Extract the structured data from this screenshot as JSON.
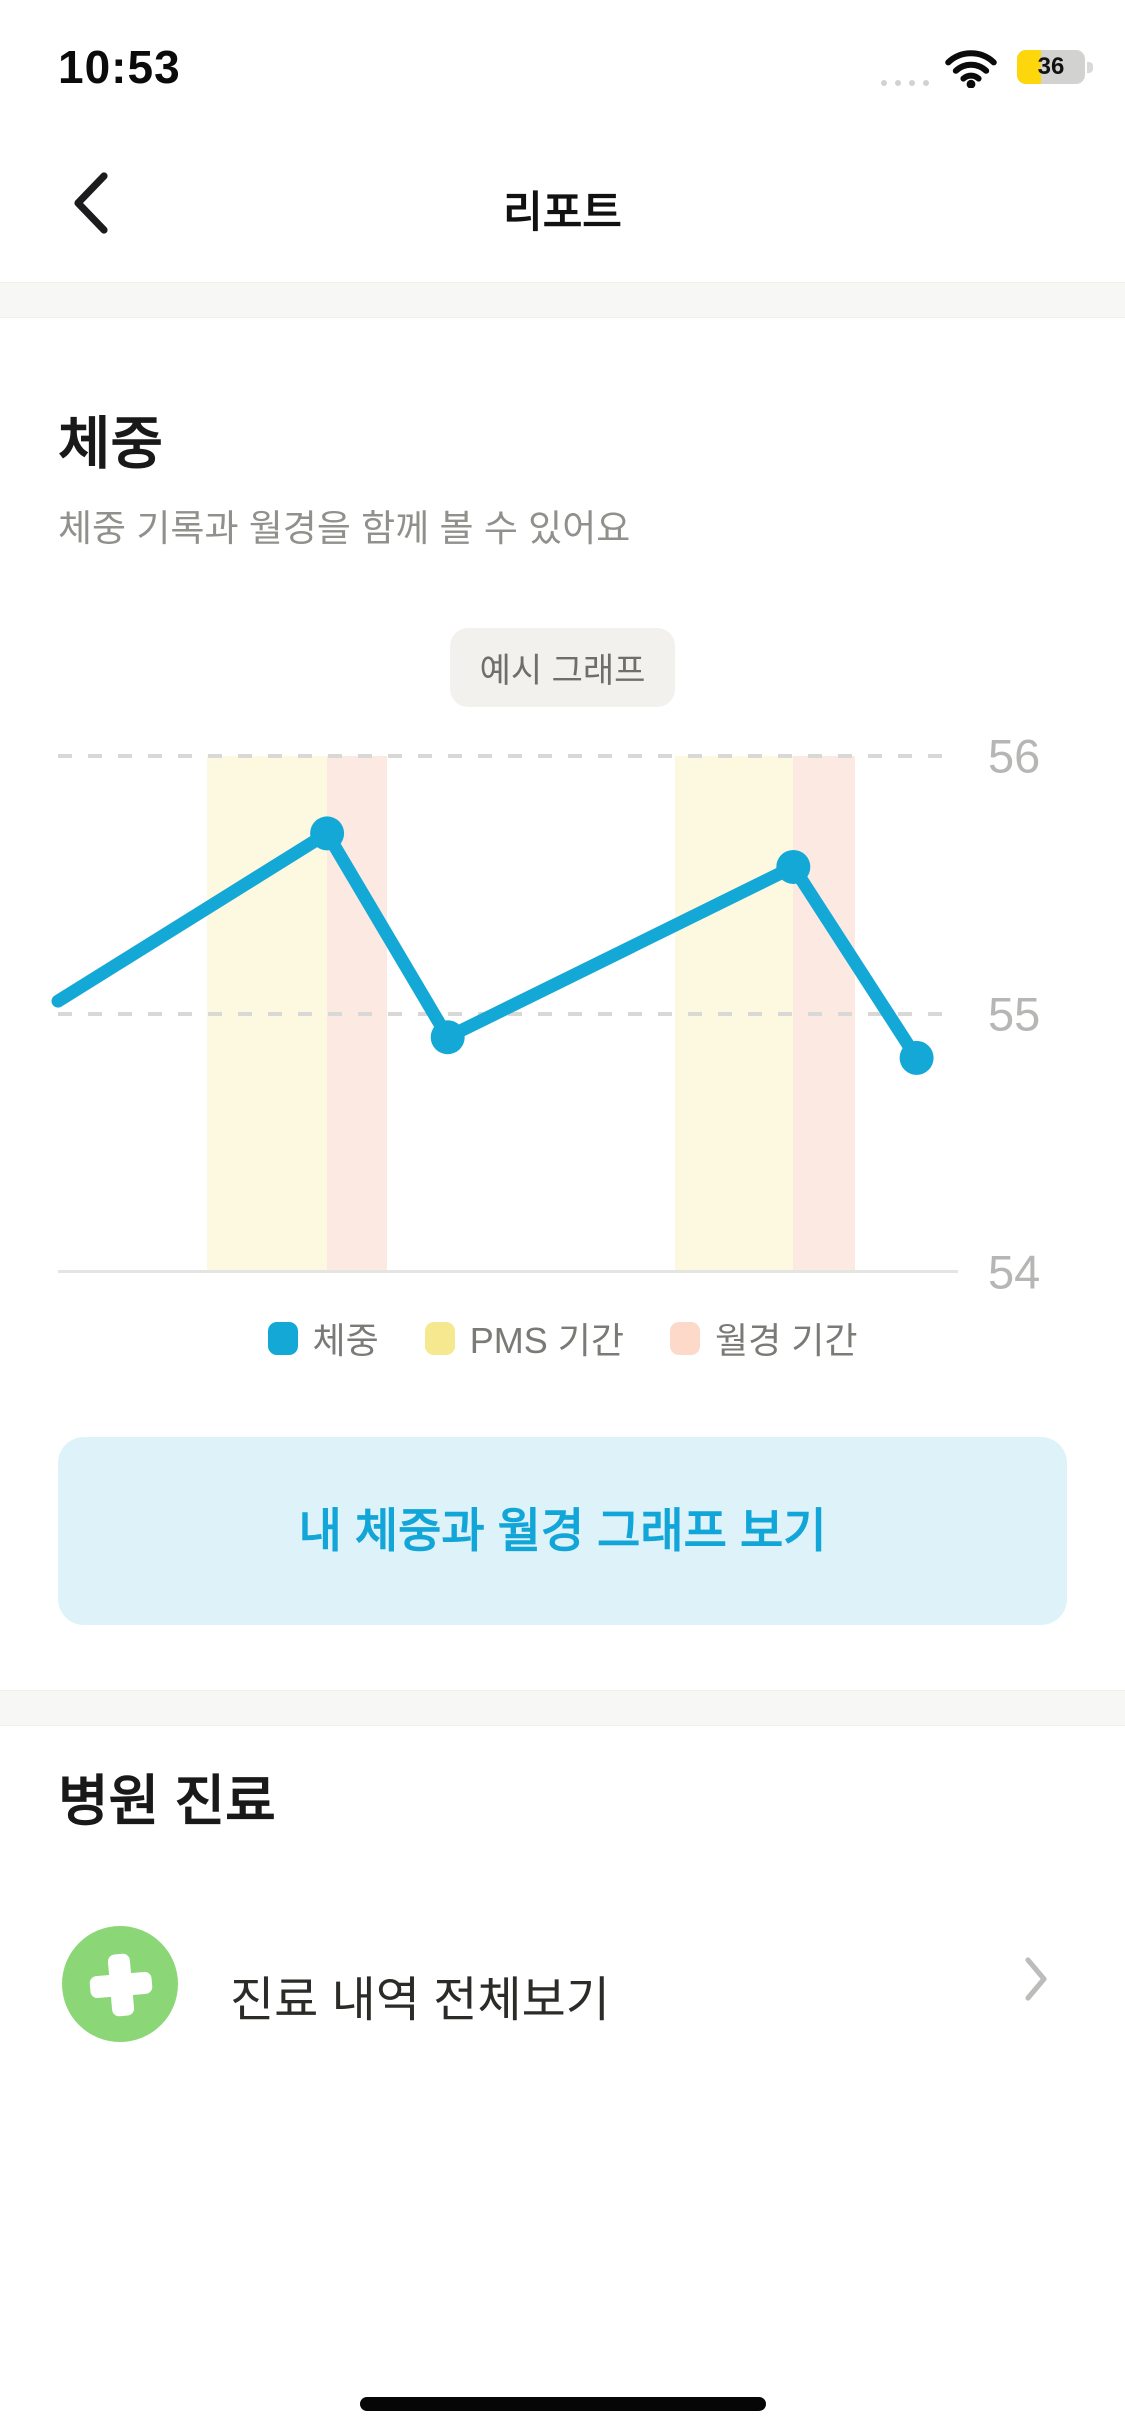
{
  "status_bar": {
    "time": "10:53",
    "battery_percent": "36"
  },
  "header": {
    "title": "리포트"
  },
  "weight_section": {
    "title": "체중",
    "subtitle": "체중 기록과 월경을 함께 볼 수 있어요",
    "badge": "예시 그래프",
    "button_label": "내 체중과 월경 그래프 보기"
  },
  "chart_data": {
    "type": "line",
    "title": "예시 그래프",
    "ylim": [
      54,
      56
    ],
    "yticks": [
      {
        "value": 56,
        "style": "dashed"
      },
      {
        "value": 55,
        "style": "dashed"
      },
      {
        "value": 54,
        "style": "solid"
      }
    ],
    "grid": "horizontal-dashed",
    "legend_position": "bottom",
    "series": [
      {
        "name": "체중",
        "color": "#14a8d6",
        "points": [
          {
            "x": 0.0,
            "y": 55.05,
            "dot": false
          },
          {
            "x": 0.299,
            "y": 55.7
          },
          {
            "x": 0.433,
            "y": 54.91
          },
          {
            "x": 0.817,
            "y": 55.57
          },
          {
            "x": 0.954,
            "y": 54.83
          }
        ]
      }
    ],
    "bands": [
      {
        "name": "PMS 기간",
        "color": "#fdf9e1",
        "x_start": 0.166,
        "x_end": 0.299
      },
      {
        "name": "월경 기간",
        "color": "#fbe9e2",
        "x_start": 0.299,
        "x_end": 0.366
      },
      {
        "name": "PMS 기간",
        "color": "#fdf9e1",
        "x_start": 0.686,
        "x_end": 0.817
      },
      {
        "name": "월경 기간",
        "color": "#fbe9e2",
        "x_start": 0.817,
        "x_end": 0.886
      }
    ],
    "legend": [
      {
        "label": "체중",
        "color": "#14a8d6"
      },
      {
        "label": "PMS 기간",
        "color": "#f6e88f"
      },
      {
        "label": "월경 기간",
        "color": "#fcd9c9"
      }
    ]
  },
  "hospital_section": {
    "title": "병원 진료",
    "row_label": "진료 내역 전체보기"
  }
}
